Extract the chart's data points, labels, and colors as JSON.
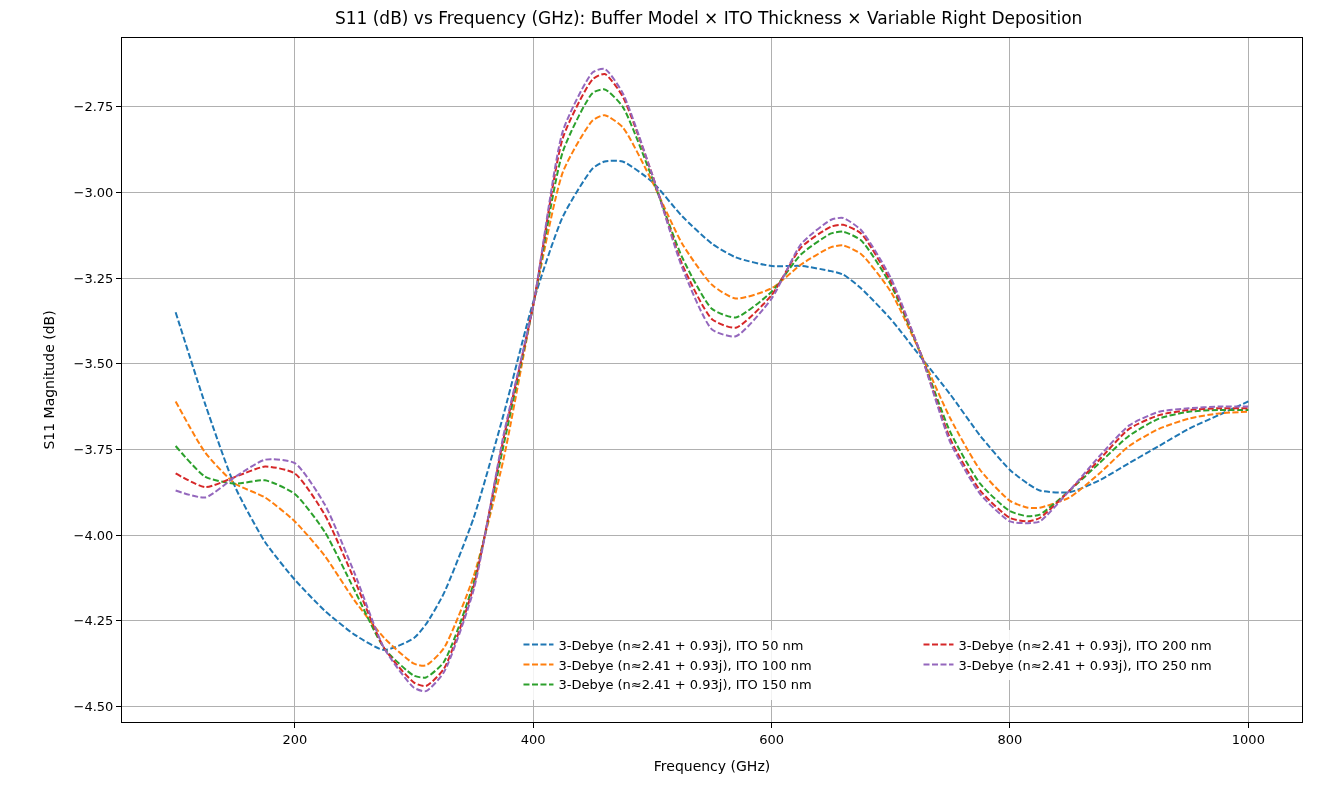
{
  "chart_data": {
    "type": "line",
    "title": "S11 (dB) vs Frequency (GHz): Buffer Model × ITO Thickness × Variable Right Deposition",
    "xlabel": "Frequency (GHz)",
    "ylabel": "S11 Magnitude (dB)",
    "x": [
      100,
      125,
      150,
      175,
      200,
      225,
      250,
      275,
      300,
      310,
      325,
      350,
      375,
      400,
      425,
      450,
      460,
      475,
      500,
      525,
      550,
      570,
      600,
      625,
      650,
      660,
      675,
      700,
      725,
      750,
      775,
      800,
      815,
      825,
      850,
      875,
      900,
      925,
      950,
      975,
      1000
    ],
    "series": [
      {
        "name": "3-Debye (n≈2.41 + 0.93j), ITO 50 nm",
        "color": "#1f77b4",
        "values": [
          -3.35,
          -3.62,
          -3.86,
          -4.02,
          -4.13,
          -4.22,
          -4.29,
          -4.335,
          -4.3,
          -4.26,
          -4.17,
          -3.95,
          -3.65,
          -3.32,
          -3.07,
          -2.93,
          -2.91,
          -2.91,
          -2.97,
          -3.07,
          -3.15,
          -3.19,
          -3.215,
          -3.215,
          -3.23,
          -3.24,
          -3.28,
          -3.37,
          -3.48,
          -3.59,
          -3.71,
          -3.81,
          -3.85,
          -3.87,
          -3.875,
          -3.84,
          -3.79,
          -3.74,
          -3.69,
          -3.65,
          -3.61
        ]
      },
      {
        "name": "3-Debye (n≈2.41 + 0.93j), ITO 100 nm",
        "color": "#ff7f0e",
        "values": [
          -3.61,
          -3.76,
          -3.85,
          -3.89,
          -3.96,
          -4.06,
          -4.19,
          -4.3,
          -4.375,
          -4.38,
          -4.33,
          -4.12,
          -3.78,
          -3.33,
          -2.94,
          -2.79,
          -2.775,
          -2.81,
          -2.97,
          -3.15,
          -3.27,
          -3.31,
          -3.28,
          -3.21,
          -3.16,
          -3.155,
          -3.18,
          -3.29,
          -3.47,
          -3.66,
          -3.81,
          -3.9,
          -3.92,
          -3.92,
          -3.89,
          -3.82,
          -3.74,
          -3.69,
          -3.66,
          -3.645,
          -3.64
        ]
      },
      {
        "name": "3-Debye (n≈2.41 + 0.93j), ITO 150 nm",
        "color": "#2ca02c",
        "values": [
          -3.74,
          -3.83,
          -3.85,
          -3.84,
          -3.88,
          -3.99,
          -4.16,
          -4.33,
          -4.41,
          -4.415,
          -4.37,
          -4.14,
          -3.74,
          -3.33,
          -2.88,
          -2.71,
          -2.7,
          -2.75,
          -2.96,
          -3.19,
          -3.34,
          -3.365,
          -3.29,
          -3.18,
          -3.12,
          -3.115,
          -3.14,
          -3.27,
          -3.47,
          -3.7,
          -3.85,
          -3.93,
          -3.945,
          -3.94,
          -3.87,
          -3.79,
          -3.71,
          -3.66,
          -3.64,
          -3.635,
          -3.635
        ]
      },
      {
        "name": "3-Debye (n≈2.41 + 0.93j), ITO 200 nm",
        "color": "#d62728",
        "values": [
          -3.82,
          -3.86,
          -3.83,
          -3.8,
          -3.82,
          -3.94,
          -4.13,
          -4.33,
          -4.43,
          -4.44,
          -4.39,
          -4.15,
          -3.72,
          -3.33,
          -2.84,
          -2.67,
          -2.655,
          -2.72,
          -2.95,
          -3.21,
          -3.37,
          -3.395,
          -3.3,
          -3.16,
          -3.1,
          -3.095,
          -3.12,
          -3.26,
          -3.47,
          -3.72,
          -3.87,
          -3.95,
          -3.96,
          -3.95,
          -3.87,
          -3.78,
          -3.69,
          -3.65,
          -3.635,
          -3.63,
          -3.63
        ]
      },
      {
        "name": "3-Debye (n≈2.41 + 0.93j), ITO 250 nm",
        "color": "#9467bd",
        "values": [
          -3.87,
          -3.89,
          -3.83,
          -3.78,
          -3.79,
          -3.91,
          -4.11,
          -4.33,
          -4.445,
          -4.455,
          -4.4,
          -4.16,
          -3.71,
          -3.33,
          -2.82,
          -2.65,
          -2.64,
          -2.71,
          -2.95,
          -3.22,
          -3.4,
          -3.42,
          -3.31,
          -3.15,
          -3.08,
          -3.075,
          -3.11,
          -3.25,
          -3.47,
          -3.73,
          -3.88,
          -3.96,
          -3.965,
          -3.96,
          -3.87,
          -3.77,
          -3.68,
          -3.64,
          -3.63,
          -3.625,
          -3.625
        ]
      }
    ],
    "xlim": [
      55,
      1045
    ],
    "xticks": [
      200,
      400,
      600,
      800,
      1000
    ],
    "ylim": [
      -4.545,
      -2.55
    ],
    "yticks": [
      {
        "value": -4.5,
        "label": "−4.50"
      },
      {
        "value": -4.25,
        "label": "−4.25"
      },
      {
        "value": -4.0,
        "label": "−4.00"
      },
      {
        "value": -3.75,
        "label": "−3.75"
      },
      {
        "value": -3.5,
        "label": "−3.50"
      },
      {
        "value": -3.25,
        "label": "−3.25"
      },
      {
        "value": -3.0,
        "label": "−3.00"
      },
      {
        "value": -2.75,
        "label": "−2.75"
      }
    ],
    "grid": true,
    "legend": "bottom right",
    "line_style": "dashed"
  }
}
